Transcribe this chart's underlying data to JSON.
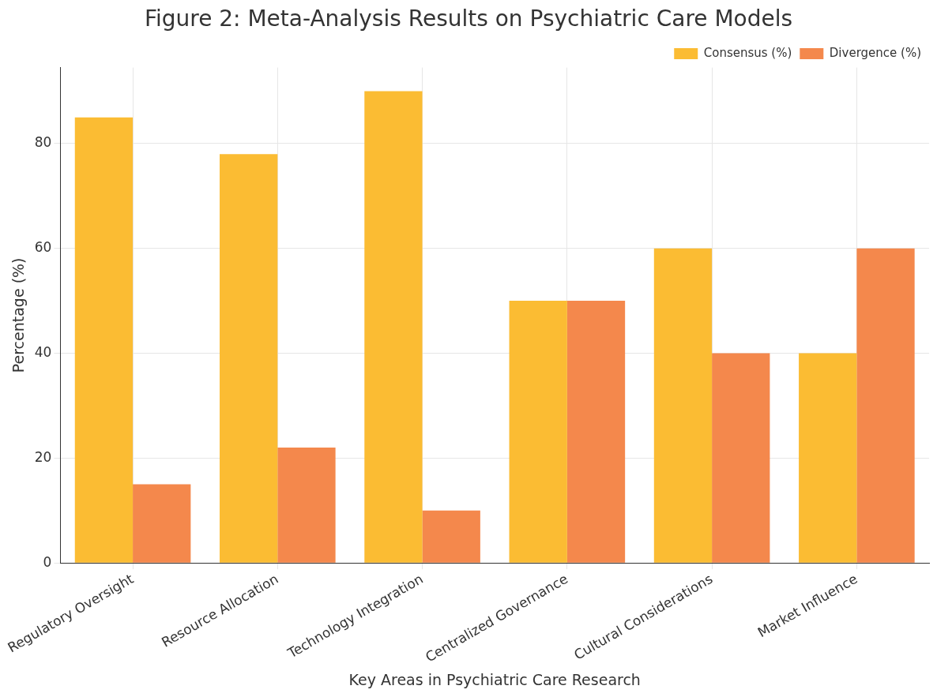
{
  "chart_data": {
    "type": "bar",
    "title": "Figure 2: Meta-Analysis Results on Psychiatric Care Models",
    "xlabel": "Key Areas in Psychiatric Care Research",
    "ylabel": "Percentage (%)",
    "categories": [
      "Regulatory Oversight",
      "Resource Allocation",
      "Technology Integration",
      "Centralized Governance",
      "Cultural Considerations",
      "Market Influence"
    ],
    "series": [
      {
        "name": "Consensus (%)",
        "color": "#fbbc33",
        "values": [
          85,
          78,
          90,
          50,
          60,
          40
        ]
      },
      {
        "name": "Divergence (%)",
        "color": "#f4884c",
        "values": [
          15,
          22,
          10,
          50,
          40,
          60
        ]
      }
    ],
    "ylim": [
      0,
      94.5
    ],
    "yticks": [
      0,
      20,
      40,
      60,
      80
    ],
    "grid": true,
    "legend": "top right"
  }
}
